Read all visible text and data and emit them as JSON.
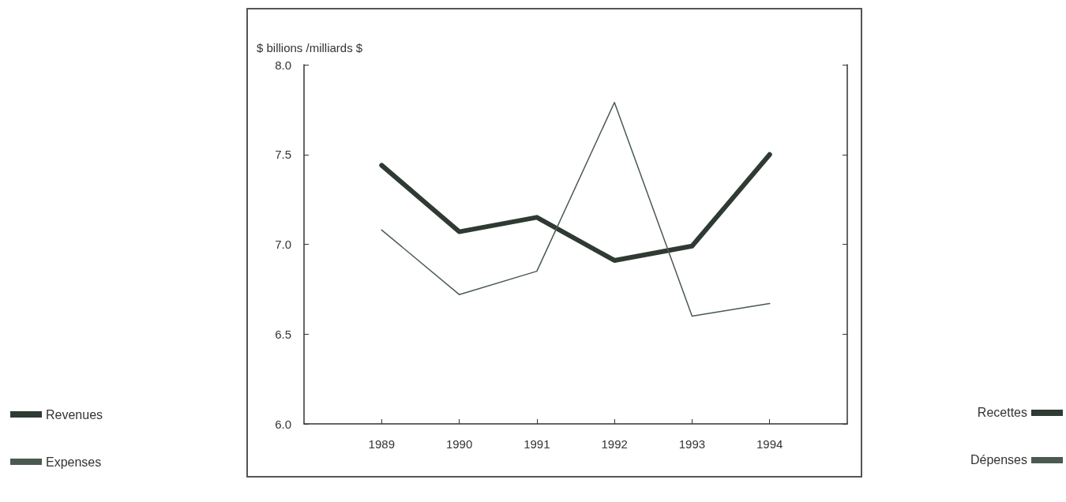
{
  "chart_data": {
    "type": "line",
    "ylabel": "$ billions /milliards $",
    "x": [
      1989,
      1990,
      1991,
      1992,
      1993,
      1994
    ],
    "series": [
      {
        "name": "Revenues",
        "color": "#2f3a33",
        "values": [
          7.44,
          7.07,
          7.15,
          6.91,
          6.99,
          7.5
        ]
      },
      {
        "name": "Expenses",
        "color": "#4a5a50",
        "values": [
          7.08,
          6.72,
          6.85,
          7.79,
          6.6,
          6.67
        ]
      }
    ],
    "xlim": [
      1988,
      1995
    ],
    "xticks": [
      1989,
      1990,
      1991,
      1992,
      1993,
      1994
    ],
    "ylim": [
      6.0,
      8.0
    ],
    "yticks": [
      {
        "value": 6.0,
        "label": "6.0"
      },
      {
        "value": 6.5,
        "label": "6.5"
      },
      {
        "value": 7.0,
        "label": "7.0"
      },
      {
        "value": 7.5,
        "label": "7.5"
      },
      {
        "value": 8.0,
        "label": "8.0"
      }
    ],
    "annotations": [
      "Recettes",
      "Dépenses"
    ],
    "legend": "left",
    "grid": false,
    "marker": "none",
    "line_style": "solid"
  }
}
